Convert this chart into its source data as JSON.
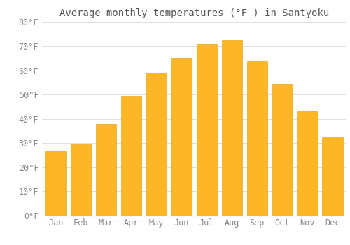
{
  "title": "Average monthly temperatures (°F ) in Santyoku",
  "months": [
    "Jan",
    "Feb",
    "Mar",
    "Apr",
    "May",
    "Jun",
    "Jul",
    "Aug",
    "Sep",
    "Oct",
    "Nov",
    "Dec"
  ],
  "values": [
    27.0,
    29.5,
    38.0,
    49.5,
    59.0,
    65.0,
    71.0,
    72.5,
    64.0,
    54.5,
    43.0,
    32.5
  ],
  "bar_color_top": "#FDB726",
  "bar_color_bottom": "#F5A000",
  "bar_edge_color": "#E89800",
  "background_color": "#FFFFFF",
  "grid_color": "#DDDDDD",
  "text_color": "#888888",
  "title_color": "#555555",
  "ylim": [
    0,
    80
  ],
  "yticks": [
    0,
    10,
    20,
    30,
    40,
    50,
    60,
    70,
    80
  ],
  "title_fontsize": 10,
  "tick_fontsize": 8.5
}
